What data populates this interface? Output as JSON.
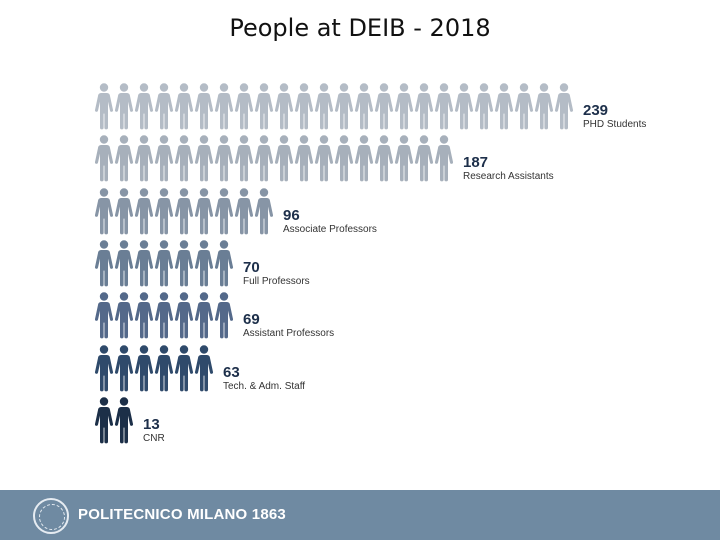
{
  "title": "People at DEIB - 2018",
  "chart_data": {
    "type": "pictograph",
    "title": "People at DEIB - 2018",
    "categories": [
      "PHD Students",
      "Research Assistants",
      "Associate Professors",
      "Full Professors",
      "Assistant Professors",
      "Tech. & Adm. Staff",
      "CNR"
    ],
    "values": [
      239,
      187,
      96,
      70,
      69,
      63,
      13
    ],
    "icon_counts": [
      24,
      18,
      9,
      7,
      7,
      6,
      2
    ],
    "colors": [
      "#b4bcc6",
      "#a7b0bb",
      "#8795a6",
      "#6a7e95",
      "#54698a",
      "#2f4a6b",
      "#1c2f48"
    ]
  },
  "footer": {
    "brand": "POLITECNICO MILANO 1863"
  }
}
